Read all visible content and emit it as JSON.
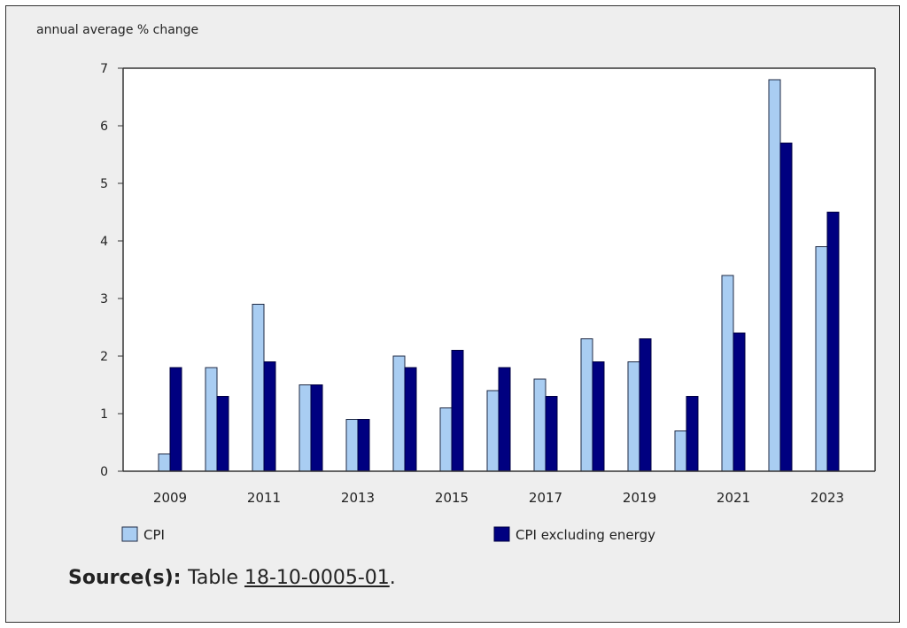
{
  "chart_data": {
    "type": "bar",
    "ylabel": "annual average % change",
    "xlabel": "",
    "ylim": [
      0,
      7
    ],
    "yticks": [
      0,
      1,
      2,
      3,
      4,
      5,
      6,
      7
    ],
    "categories": [
      "2009",
      "2010",
      "2011",
      "2012",
      "2013",
      "2014",
      "2015",
      "2016",
      "2017",
      "2018",
      "2019",
      "2020",
      "2021",
      "2022",
      "2023"
    ],
    "xtick_labels": [
      "2009",
      "2011",
      "2013",
      "2015",
      "2017",
      "2019",
      "2021",
      "2023"
    ],
    "series": [
      {
        "name": "CPI",
        "color": "#a9cdf2",
        "values": [
          0.3,
          1.8,
          2.9,
          1.5,
          0.9,
          2.0,
          1.1,
          1.4,
          1.6,
          2.3,
          1.9,
          0.7,
          3.4,
          6.8,
          3.9
        ]
      },
      {
        "name": "CPI excluding energy",
        "color": "#000080",
        "values": [
          1.8,
          1.3,
          1.9,
          1.5,
          0.9,
          1.8,
          2.1,
          1.8,
          1.3,
          1.9,
          2.3,
          1.3,
          2.4,
          5.7,
          4.5
        ]
      }
    ],
    "grid": false,
    "legend_position": "bottom"
  },
  "source": {
    "label": "Source(s):",
    "text": "Table",
    "link_text": "18-10-0005-01",
    "suffix": "."
  }
}
